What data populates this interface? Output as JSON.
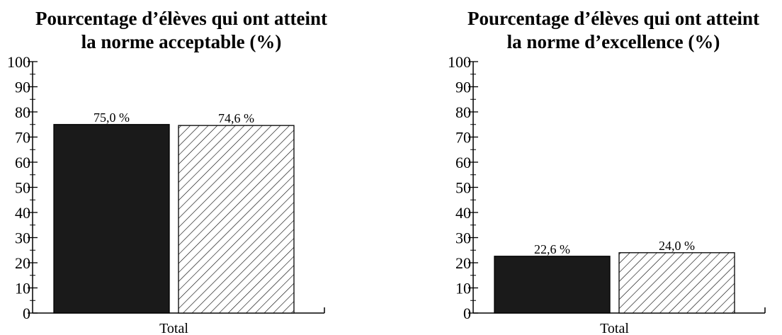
{
  "chart_data": [
    {
      "type": "bar",
      "title_lines": [
        "Pourcentage d’élèves qui ont atteint",
        "la norme acceptable (%)"
      ],
      "categories": [
        "Total"
      ],
      "series": [
        {
          "values": [
            75.0
          ],
          "fill": "solid",
          "color": "#1a1a1a"
        },
        {
          "values": [
            74.6
          ],
          "fill": "hatched",
          "color": "#ffffff"
        }
      ],
      "value_labels": [
        "75,0 %",
        "74,6 %"
      ],
      "yticks": [
        "0",
        "10",
        "20",
        "30",
        "40",
        "50",
        "60",
        "70",
        "80",
        "90",
        "100"
      ],
      "ylim": [
        0,
        100
      ],
      "grid": false
    },
    {
      "type": "bar",
      "title_lines": [
        "Pourcentage d’élèves qui ont atteint",
        "la norme d’excellence (%)"
      ],
      "categories": [
        "Total"
      ],
      "series": [
        {
          "values": [
            22.6
          ],
          "fill": "solid",
          "color": "#1a1a1a"
        },
        {
          "values": [
            24.0
          ],
          "fill": "hatched",
          "color": "#ffffff"
        }
      ],
      "value_labels": [
        "22,6 %",
        "24,0 %"
      ],
      "yticks": [
        "0",
        "10",
        "20",
        "30",
        "40",
        "50",
        "60",
        "70",
        "80",
        "90",
        "100"
      ],
      "ylim": [
        0,
        100
      ],
      "grid": false
    }
  ]
}
